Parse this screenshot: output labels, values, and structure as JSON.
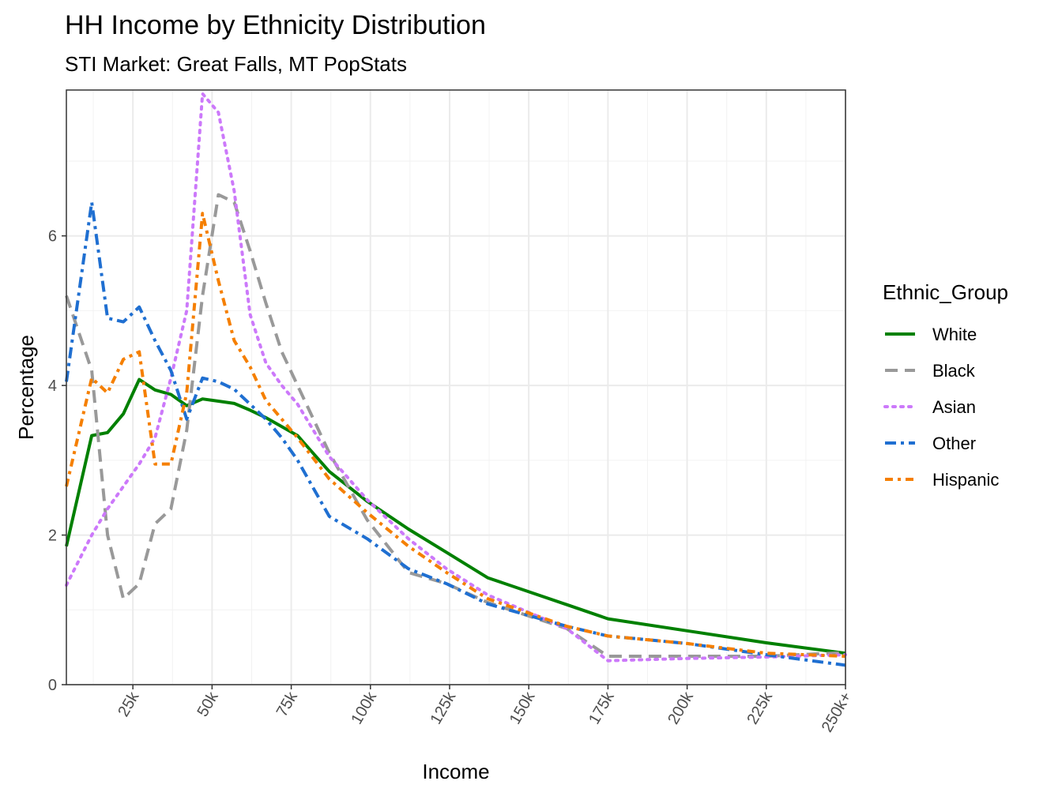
{
  "chart_data": {
    "type": "line",
    "title": "HH Income by Ethnicity Distribution",
    "subtitle": "STI Market: Great Falls, MT PopStats",
    "xlabel": "Income",
    "ylabel": "Percentage",
    "x_ticks": [
      "25k",
      "50k",
      "75k",
      "100k",
      "125k",
      "150k",
      "175k",
      "200k",
      "225k",
      "250k+"
    ],
    "x_tick_values": [
      25,
      50,
      75,
      100,
      125,
      150,
      175,
      200,
      225,
      250
    ],
    "xlim": [
      4,
      250
    ],
    "ylim": [
      0,
      7.95
    ],
    "y_ticks": [
      0,
      2,
      4,
      6
    ],
    "grid": true,
    "legend_title": "Ethnic_Group",
    "legend_position": "right",
    "x": [
      4,
      12,
      17,
      22,
      27,
      32,
      37,
      42,
      47,
      52,
      57,
      62,
      67,
      72,
      77,
      87,
      99,
      112,
      124,
      137,
      162,
      175,
      200,
      225,
      250
    ],
    "series": [
      {
        "name": "White",
        "color": "#008000",
        "dash": "solid",
        "values": [
          1.85,
          3.33,
          3.37,
          3.62,
          4.08,
          3.94,
          3.88,
          3.73,
          3.82,
          3.79,
          3.76,
          3.67,
          3.57,
          3.45,
          3.33,
          2.85,
          2.45,
          2.08,
          1.77,
          1.43,
          1.07,
          0.88,
          0.72,
          0.56,
          0.42
        ]
      },
      {
        "name": "Black",
        "color": "#999999",
        "dash": "long",
        "values": [
          5.2,
          4.2,
          2.0,
          1.15,
          1.35,
          2.15,
          2.35,
          3.4,
          5.2,
          6.55,
          6.45,
          5.8,
          5.1,
          4.45,
          4.0,
          3.1,
          2.2,
          1.5,
          1.35,
          1.1,
          0.75,
          0.38,
          0.38,
          0.38,
          0.43
        ]
      },
      {
        "name": "Asian",
        "color": "#CC79FA",
        "dash": "dot",
        "values": [
          1.33,
          2.0,
          2.35,
          2.65,
          2.95,
          3.3,
          4.1,
          5.0,
          7.9,
          7.65,
          6.6,
          4.95,
          4.3,
          4.0,
          3.75,
          3.05,
          2.47,
          1.95,
          1.55,
          1.2,
          0.75,
          0.32,
          0.35,
          0.37,
          0.4
        ]
      },
      {
        "name": "Other",
        "color": "#1F6FD1",
        "dash": "dashdot",
        "values": [
          4.05,
          6.45,
          4.9,
          4.85,
          5.05,
          4.6,
          4.2,
          3.55,
          4.1,
          4.05,
          3.95,
          3.75,
          3.55,
          3.3,
          3.0,
          2.25,
          1.95,
          1.55,
          1.35,
          1.08,
          0.78,
          0.65,
          0.55,
          0.4,
          0.26
        ]
      },
      {
        "name": "Hispanic",
        "color": "#F57F00",
        "dash": "dashdot2",
        "values": [
          2.65,
          4.1,
          3.9,
          4.35,
          4.45,
          2.95,
          2.95,
          3.9,
          6.3,
          5.4,
          4.6,
          4.25,
          3.8,
          3.55,
          3.3,
          2.75,
          2.3,
          1.85,
          1.5,
          1.15,
          0.78,
          0.65,
          0.55,
          0.42,
          0.38
        ]
      }
    ]
  }
}
